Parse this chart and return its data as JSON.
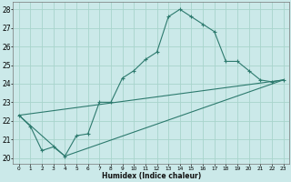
{
  "xlabel": "Humidex (Indice chaleur)",
  "bg_color": "#cbe9e9",
  "grid_color": "#a8d4cc",
  "line_color": "#2d7a6e",
  "xlim": [
    -0.5,
    23.5
  ],
  "ylim": [
    19.7,
    28.4
  ],
  "xticks": [
    0,
    1,
    2,
    3,
    4,
    5,
    6,
    7,
    8,
    9,
    10,
    11,
    12,
    13,
    14,
    15,
    16,
    17,
    18,
    19,
    20,
    21,
    22,
    23
  ],
  "yticks": [
    20,
    21,
    22,
    23,
    24,
    25,
    26,
    27,
    28
  ],
  "series": [
    {
      "x": [
        0,
        1,
        2,
        3,
        4,
        5,
        6,
        7,
        8,
        9,
        10,
        11,
        12,
        13,
        14,
        15,
        16,
        17,
        18,
        19,
        20,
        21,
        22,
        23
      ],
      "y": [
        22.3,
        21.7,
        20.4,
        20.6,
        20.1,
        21.2,
        21.3,
        23.0,
        23.0,
        24.3,
        24.7,
        25.3,
        25.7,
        27.6,
        28.0,
        27.6,
        27.2,
        26.8,
        25.2,
        25.2,
        24.7,
        24.2,
        24.1,
        24.2
      ],
      "marker": true
    },
    {
      "x": [
        0,
        4,
        23
      ],
      "y": [
        22.3,
        20.1,
        24.2
      ],
      "marker": false
    },
    {
      "x": [
        0,
        23
      ],
      "y": [
        22.3,
        24.2
      ],
      "marker": false
    }
  ]
}
